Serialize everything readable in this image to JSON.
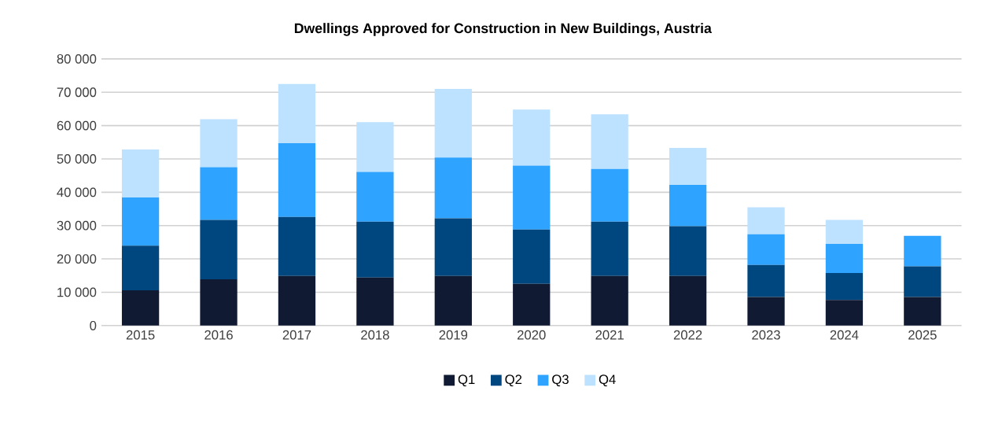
{
  "chart_data": {
    "type": "bar",
    "stacked": true,
    "title": "Dwellings Approved for Construction in New Buildings, Austria",
    "categories": [
      "2015",
      "2016",
      "2017",
      "2018",
      "2019",
      "2020",
      "2021",
      "2022",
      "2023",
      "2024",
      "2025"
    ],
    "series": [
      {
        "name": "Q1",
        "color": "#101a33",
        "values": [
          10600,
          13900,
          14900,
          14400,
          14900,
          12500,
          14900,
          14900,
          8600,
          7700,
          8600
        ]
      },
      {
        "name": "Q2",
        "color": "#00467f",
        "values": [
          13400,
          17800,
          17700,
          16800,
          17300,
          16300,
          16300,
          14900,
          9600,
          8100,
          9200
        ]
      },
      {
        "name": "Q3",
        "color": "#2ea3ff",
        "values": [
          14400,
          15800,
          22100,
          14900,
          18200,
          19200,
          15800,
          12400,
          9200,
          8700,
          9100
        ]
      },
      {
        "name": "Q4",
        "color": "#bde2ff",
        "values": [
          14400,
          14400,
          17800,
          14900,
          20600,
          16800,
          16400,
          11100,
          8100,
          7200,
          null
        ]
      }
    ],
    "ylim": [
      0,
      80000
    ],
    "yticks": [
      0,
      {
        "value": 10000,
        "label": "10 000"
      },
      {
        "value": 20000,
        "label": "20 000"
      },
      {
        "value": 30000,
        "label": "30 000"
      },
      {
        "value": 40000,
        "label": "40 000"
      },
      {
        "value": 50000,
        "label": "50 000"
      },
      {
        "value": 60000,
        "label": "60 000"
      },
      {
        "value": 70000,
        "label": "70 000"
      },
      {
        "value": 80000,
        "label": "80 000"
      }
    ],
    "grid": "y",
    "legend": "bottom"
  }
}
